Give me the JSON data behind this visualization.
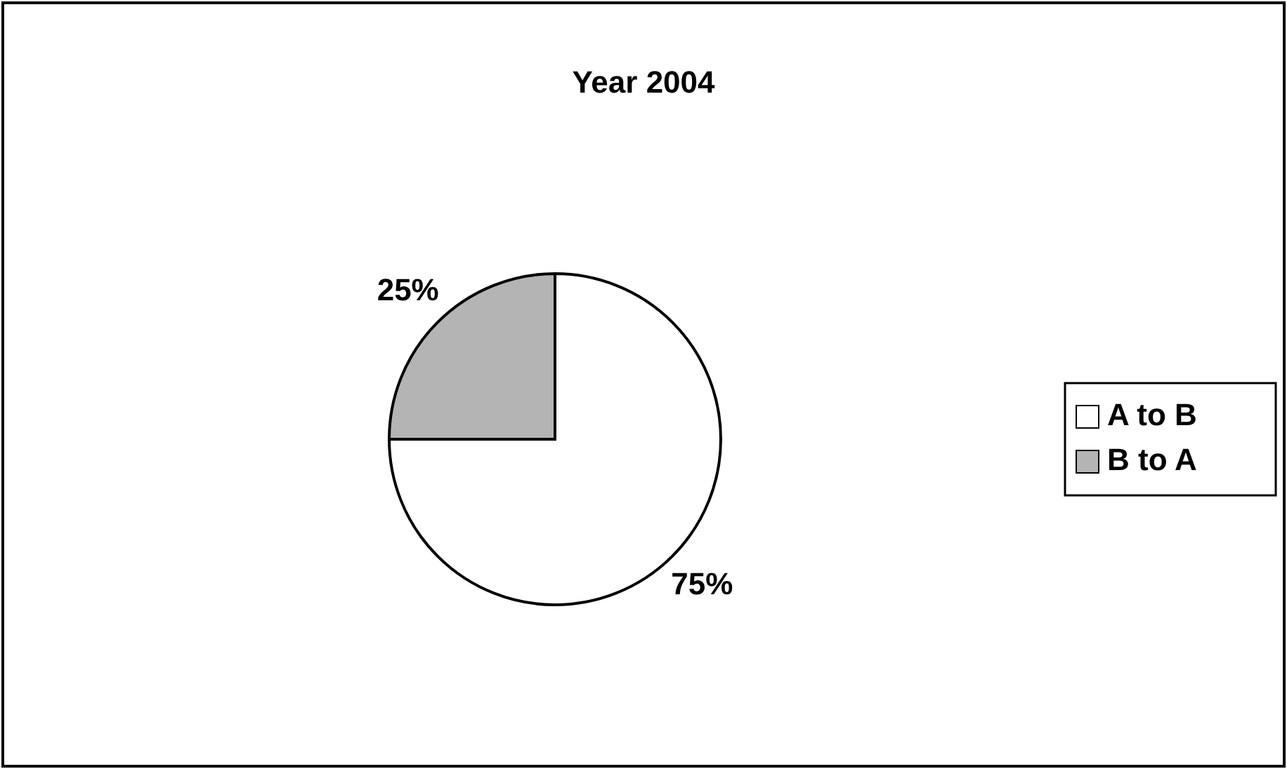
{
  "chart_data": {
    "type": "pie",
    "title": "Year 2004",
    "categories": [
      "A to B",
      "B to A"
    ],
    "values": [
      75,
      25
    ],
    "colors": [
      "#ffffff",
      "#b4b4b4"
    ],
    "value_labels": [
      "75%",
      "25%"
    ],
    "legend": "right"
  }
}
